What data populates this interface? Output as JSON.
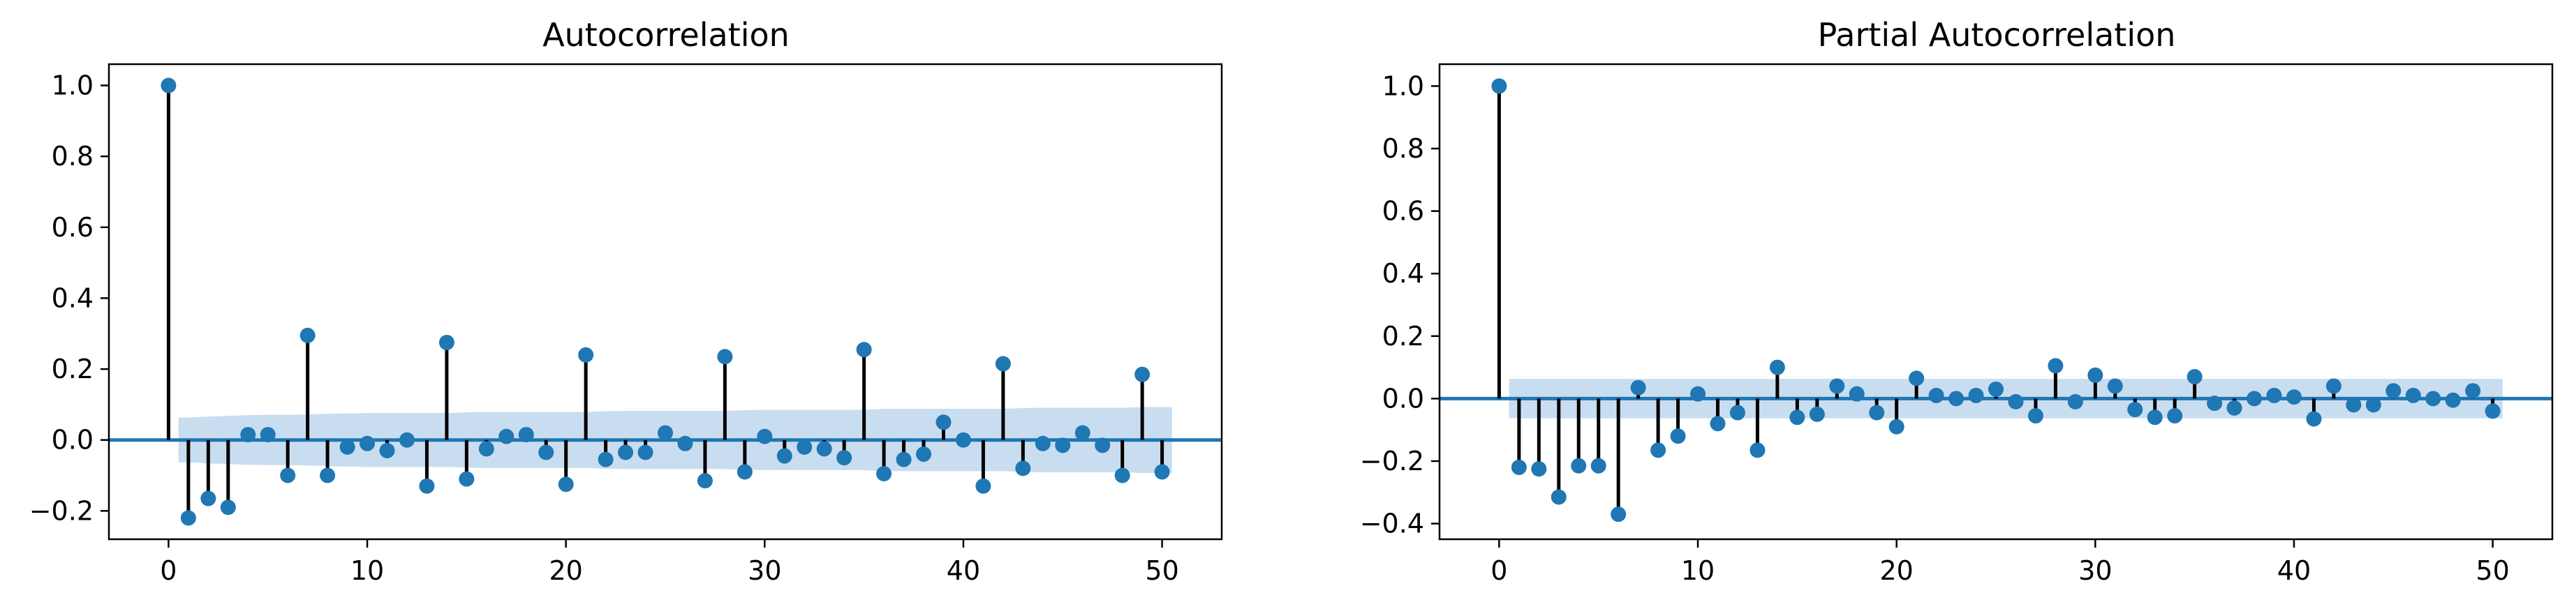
{
  "colors": {
    "marker": "#1f77b4",
    "stem": "#000000",
    "baseline": "#1f77b4",
    "confidence_band": "#c6dbef"
  },
  "chart_data": [
    {
      "type": "stem",
      "title": "Autocorrelation",
      "xlim": [
        -3,
        53
      ],
      "ylim": [
        -0.28,
        1.06
      ],
      "xticks": [
        0,
        10,
        20,
        30,
        40,
        50
      ],
      "yticks": [
        -0.2,
        0.0,
        0.2,
        0.4,
        0.6,
        0.8,
        1.0
      ],
      "ytick_labels": [
        "−0.2",
        "0.0",
        "0.2",
        "0.4",
        "0.6",
        "0.8",
        "1.0"
      ],
      "xtick_labels": [
        "0",
        "10",
        "20",
        "30",
        "40",
        "50"
      ],
      "lags": [
        0,
        1,
        2,
        3,
        4,
        5,
        6,
        7,
        8,
        9,
        10,
        11,
        12,
        13,
        14,
        15,
        16,
        17,
        18,
        19,
        20,
        21,
        22,
        23,
        24,
        25,
        26,
        27,
        28,
        29,
        30,
        31,
        32,
        33,
        34,
        35,
        36,
        37,
        38,
        39,
        40,
        41,
        42,
        43,
        44,
        45,
        46,
        47,
        48,
        49,
        50
      ],
      "values": [
        1.0,
        -0.22,
        -0.165,
        -0.19,
        0.015,
        0.015,
        -0.1,
        0.295,
        -0.1,
        -0.02,
        -0.01,
        -0.03,
        0.0,
        -0.13,
        0.275,
        -0.11,
        -0.025,
        0.01,
        0.015,
        -0.035,
        -0.125,
        0.24,
        -0.055,
        -0.035,
        -0.035,
        0.02,
        -0.01,
        -0.115,
        0.235,
        -0.09,
        0.01,
        -0.045,
        -0.02,
        -0.025,
        -0.05,
        0.255,
        -0.095,
        -0.055,
        -0.04,
        0.05,
        0.0,
        -0.13,
        0.215,
        -0.08,
        -0.01,
        -0.015,
        0.02,
        -0.015,
        -0.1,
        0.185,
        -0.09
      ],
      "confidence_band": {
        "lags": [
          0.5,
          1,
          2,
          3,
          4,
          5,
          6,
          7,
          8,
          9,
          10,
          11,
          12,
          13,
          14,
          15,
          16,
          17,
          18,
          19,
          20,
          21,
          22,
          23,
          24,
          25,
          26,
          27,
          28,
          29,
          30,
          31,
          32,
          33,
          34,
          35,
          36,
          37,
          38,
          39,
          40,
          41,
          42,
          43,
          44,
          45,
          46,
          47,
          48,
          49,
          50,
          50.5
        ],
        "upper": [
          0.063,
          0.063,
          0.066,
          0.068,
          0.07,
          0.071,
          0.071,
          0.072,
          0.074,
          0.075,
          0.076,
          0.076,
          0.076,
          0.076,
          0.076,
          0.078,
          0.079,
          0.079,
          0.079,
          0.079,
          0.079,
          0.079,
          0.081,
          0.082,
          0.082,
          0.082,
          0.082,
          0.082,
          0.082,
          0.084,
          0.085,
          0.085,
          0.085,
          0.085,
          0.085,
          0.085,
          0.088,
          0.088,
          0.088,
          0.088,
          0.088,
          0.088,
          0.088,
          0.09,
          0.091,
          0.091,
          0.091,
          0.091,
          0.091,
          0.093,
          0.093,
          0.093
        ]
      }
    },
    {
      "type": "stem",
      "title": "Partial Autocorrelation",
      "xlim": [
        -3,
        53
      ],
      "ylim": [
        -0.45,
        1.07
      ],
      "xticks": [
        0,
        10,
        20,
        30,
        40,
        50
      ],
      "yticks": [
        -0.4,
        -0.2,
        0.0,
        0.2,
        0.4,
        0.6,
        0.8,
        1.0
      ],
      "ytick_labels": [
        "−0.4",
        "−0.2",
        "0.0",
        "0.2",
        "0.4",
        "0.6",
        "0.8",
        "1.0"
      ],
      "xtick_labels": [
        "0",
        "10",
        "20",
        "30",
        "40",
        "50"
      ],
      "lags": [
        0,
        1,
        2,
        3,
        4,
        5,
        6,
        7,
        8,
        9,
        10,
        11,
        12,
        13,
        14,
        15,
        16,
        17,
        18,
        19,
        20,
        21,
        22,
        23,
        24,
        25,
        26,
        27,
        28,
        29,
        30,
        31,
        32,
        33,
        34,
        35,
        36,
        37,
        38,
        39,
        40,
        41,
        42,
        43,
        44,
        45,
        46,
        47,
        48,
        49,
        50
      ],
      "values": [
        1.0,
        -0.22,
        -0.225,
        -0.315,
        -0.215,
        -0.215,
        -0.37,
        0.035,
        -0.165,
        -0.12,
        0.015,
        -0.08,
        -0.045,
        -0.165,
        0.1,
        -0.06,
        -0.05,
        0.04,
        0.015,
        -0.045,
        -0.09,
        0.065,
        0.01,
        0.0,
        0.01,
        0.03,
        -0.01,
        -0.055,
        0.105,
        -0.01,
        0.075,
        0.04,
        -0.035,
        -0.06,
        -0.055,
        0.07,
        -0.015,
        -0.03,
        0.0,
        0.01,
        0.005,
        -0.065,
        0.04,
        -0.02,
        -0.02,
        0.025,
        0.01,
        0.0,
        -0.005,
        0.025,
        -0.04
      ],
      "confidence_band": {
        "lags": [
          0.5,
          50.5
        ],
        "upper": [
          0.063,
          0.063
        ]
      }
    }
  ]
}
